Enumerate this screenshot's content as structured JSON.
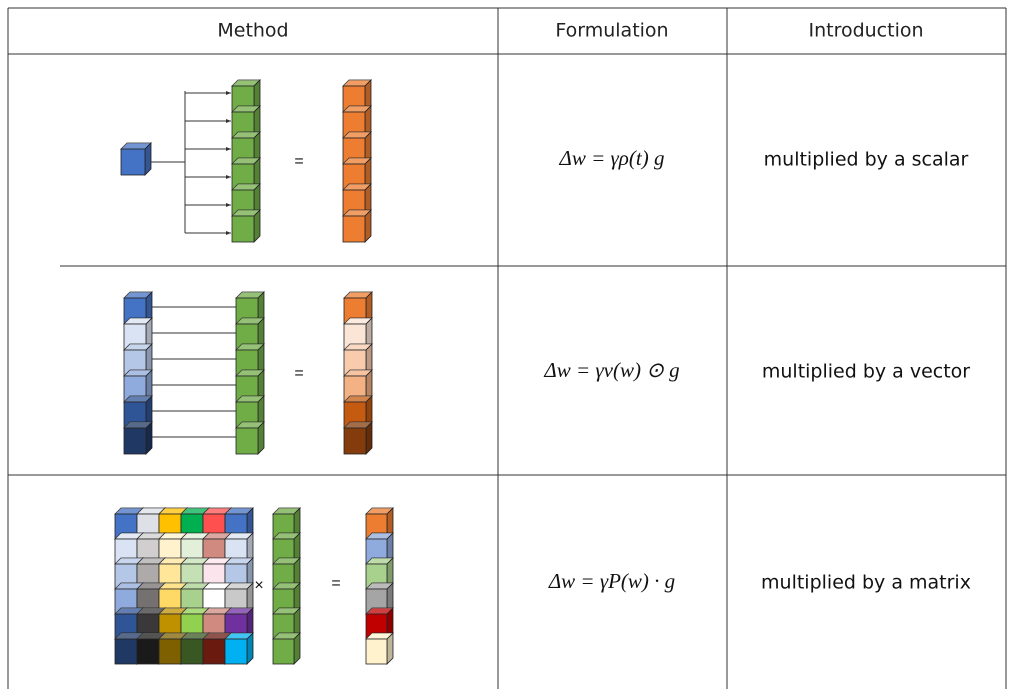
{
  "table": {
    "header": [
      "Method",
      "Formulation",
      "Introduction"
    ],
    "rows": [
      {
        "method": [
          "="
        ],
        "formulation": "Δw = γρ(t) g",
        "introduction": "multiplied by a scalar"
      },
      {
        "method": [
          "="
        ],
        "formulation": "Δw = γv(w) ⊙ g",
        "introduction": "multiplied by a vector"
      },
      {
        "method": [
          "×",
          "="
        ],
        "formulation": "Δw = γP(w) · g",
        "introduction": "multiplied by a matrix"
      }
    ]
  }
}
